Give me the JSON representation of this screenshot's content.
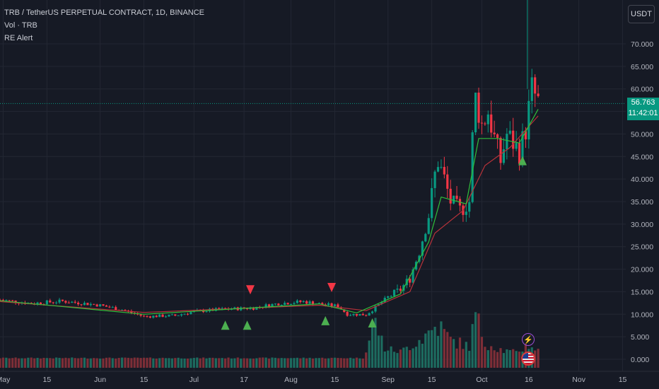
{
  "legend": {
    "symbol_line": "TRB / TetherUS PERPETUAL CONTRACT, 1D, BINANCE",
    "volume_line": "Vol · TRB",
    "alert_line": "RE Alert"
  },
  "currency_button": "USDT",
  "last_price": {
    "value": "56.763",
    "countdown": "11:42:01",
    "price": 56.763
  },
  "colors": {
    "up": "#089981",
    "down": "#f23645",
    "volume_up": "#1d6b5f",
    "volume_down": "#7d2e37",
    "ema_fast": "#2fbf3a",
    "ema_slow": "#b7323a",
    "signal_up": "#4caf50",
    "signal_down": "#f23645",
    "background": "#161a25",
    "grid": "#232733"
  },
  "icons": [
    "flash-icon",
    "us-flag-icon"
  ],
  "chart_data": {
    "type": "candlestick",
    "y_axis": {
      "ticks": [
        0,
        5,
        10,
        15,
        20,
        25,
        30,
        35,
        40,
        45,
        50,
        55,
        60,
        65,
        70
      ],
      "tick_labels": [
        "0.000",
        "5.000",
        "10.000",
        "15.000",
        "20.000",
        "25.000",
        "30.000",
        "35.000",
        "40.000",
        "45.000",
        "50.000",
        "55.000",
        "60.000",
        "65.000",
        "70.000"
      ],
      "range": [
        -2,
        82
      ],
      "position": "right"
    },
    "x_axis": {
      "start": "2023-04-30",
      "end": "2023-11-16",
      "tick_labels": [
        {
          "date": "2023-05-01",
          "label": "May"
        },
        {
          "date": "2023-05-15",
          "label": "15"
        },
        {
          "date": "2023-06-01",
          "label": "Jun"
        },
        {
          "date": "2023-06-15",
          "label": "15"
        },
        {
          "date": "2023-07-01",
          "label": "Jul"
        },
        {
          "date": "2023-07-17",
          "label": "17"
        },
        {
          "date": "2023-08-01",
          "label": "Aug"
        },
        {
          "date": "2023-08-15",
          "label": "15"
        },
        {
          "date": "2023-09-01",
          "label": "Sep"
        },
        {
          "date": "2023-09-15",
          "label": "15"
        },
        {
          "date": "2023-10-01",
          "label": "Oct"
        },
        {
          "date": "2023-10-16",
          "label": "16"
        },
        {
          "date": "2023-11-01",
          "label": "Nov"
        },
        {
          "date": "2023-11-15",
          "label": "15"
        }
      ]
    },
    "grid": true,
    "price_path": [
      [
        "2023-04-30",
        13.2
      ],
      [
        "2023-05-10",
        12.4
      ],
      [
        "2023-05-20",
        12.9
      ],
      [
        "2023-05-31",
        12.1
      ],
      [
        "2023-06-08",
        11.0
      ],
      [
        "2023-06-15",
        9.5
      ],
      [
        "2023-06-25",
        9.7
      ],
      [
        "2023-07-01",
        10.6
      ],
      [
        "2023-07-10",
        11.1
      ],
      [
        "2023-07-20",
        11.4
      ],
      [
        "2023-07-28",
        12.4
      ],
      [
        "2023-08-05",
        12.8
      ],
      [
        "2023-08-12",
        12.1
      ],
      [
        "2023-08-16",
        11.8
      ],
      [
        "2023-08-19",
        10.0
      ],
      [
        "2023-08-25",
        9.9
      ],
      [
        "2023-08-28",
        11.5
      ],
      [
        "2023-09-01",
        13.8
      ],
      [
        "2023-09-05",
        15.5
      ],
      [
        "2023-09-08",
        18.0
      ],
      [
        "2023-09-11",
        24.0
      ],
      [
        "2023-09-14",
        32.0
      ],
      [
        "2023-09-16",
        41.0
      ],
      [
        "2023-09-17",
        44.0
      ],
      [
        "2023-09-19",
        40.0
      ],
      [
        "2023-09-21",
        35.0
      ],
      [
        "2023-09-24",
        33.0
      ],
      [
        "2023-09-27",
        35.0
      ],
      [
        "2023-09-28",
        49.0
      ],
      [
        "2023-09-29",
        58.0
      ],
      [
        "2023-10-01",
        52.0
      ],
      [
        "2023-10-03",
        55.0
      ],
      [
        "2023-10-05",
        49.0
      ],
      [
        "2023-10-07",
        44.0
      ],
      [
        "2023-10-09",
        50.0
      ],
      [
        "2023-10-11",
        48.0
      ],
      [
        "2023-10-13",
        46.0
      ],
      [
        "2023-10-15",
        51.0
      ],
      [
        "2023-10-17",
        60.0
      ],
      [
        "2023-10-19",
        57.0
      ]
    ],
    "volume_path": [
      [
        "2023-04-30",
        0.3
      ],
      [
        "2023-08-24",
        0.3
      ],
      [
        "2023-08-28",
        8.5
      ],
      [
        "2023-08-31",
        2.5
      ],
      [
        "2023-09-05",
        1.8
      ],
      [
        "2023-09-12",
        5.0
      ],
      [
        "2023-09-15",
        6.8
      ],
      [
        "2023-09-17",
        8.0
      ],
      [
        "2023-09-21",
        4.5
      ],
      [
        "2023-09-27",
        3.0
      ],
      [
        "2023-09-29",
        10.0
      ],
      [
        "2023-10-02",
        4.0
      ],
      [
        "2023-10-08",
        2.0
      ],
      [
        "2023-10-12",
        1.6
      ],
      [
        "2023-10-16",
        3.5
      ],
      [
        "2023-10-19",
        2.0
      ]
    ],
    "ema_fast": [
      [
        "2023-04-30",
        13.0
      ],
      [
        "2023-06-15",
        10.0
      ],
      [
        "2023-08-10",
        12.3
      ],
      [
        "2023-08-22",
        10.3
      ],
      [
        "2023-09-05",
        14.5
      ],
      [
        "2023-09-14",
        26.0
      ],
      [
        "2023-09-18",
        36.0
      ],
      [
        "2023-09-26",
        34.5
      ],
      [
        "2023-09-30",
        49.0
      ],
      [
        "2023-10-06",
        49.0
      ],
      [
        "2023-10-13",
        48.0
      ],
      [
        "2023-10-19",
        55.5
      ]
    ],
    "ema_slow": [
      [
        "2023-04-30",
        12.8
      ],
      [
        "2023-06-15",
        10.4
      ],
      [
        "2023-08-10",
        12.0
      ],
      [
        "2023-08-25",
        10.8
      ],
      [
        "2023-09-08",
        15.0
      ],
      [
        "2023-09-16",
        28.0
      ],
      [
        "2023-09-25",
        33.0
      ],
      [
        "2023-10-02",
        43.0
      ],
      [
        "2023-10-10",
        47.0
      ],
      [
        "2023-10-19",
        54.0
      ]
    ],
    "signals_up": [
      [
        "2023-07-11",
        7.5
      ],
      [
        "2023-07-18",
        7.5
      ],
      [
        "2023-08-12",
        8.5
      ],
      [
        "2023-08-27",
        8.0
      ],
      [
        "2023-10-14",
        44.0
      ]
    ],
    "signals_down": [
      [
        "2023-07-19",
        15.5
      ],
      [
        "2023-08-14",
        16.0
      ]
    ],
    "last_price": 56.763
  }
}
